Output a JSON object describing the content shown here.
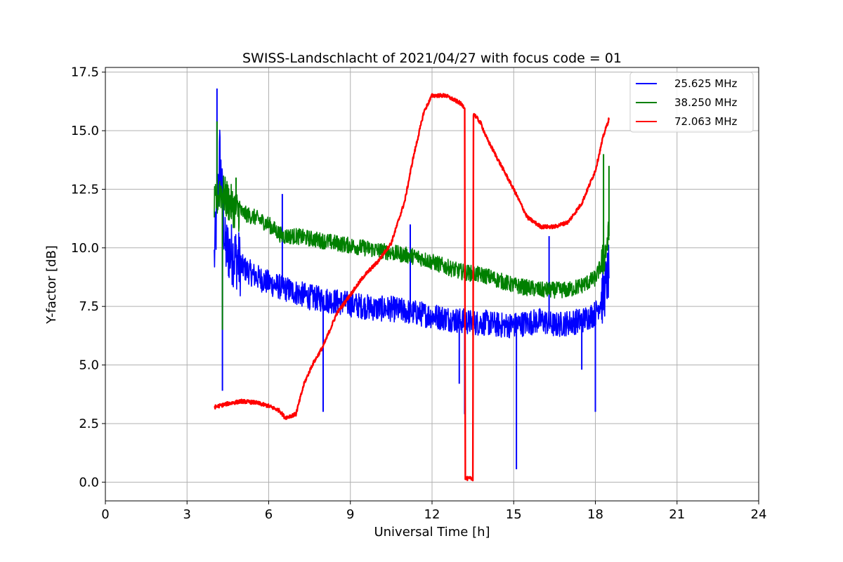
{
  "chart_data": {
    "type": "line",
    "title": "SWISS-Landschlacht of 2021/04/27 with focus code = 01",
    "xlabel": "Universal Time [h]",
    "ylabel": "Y-factor [dB]",
    "xlim": [
      0,
      24
    ],
    "ylim": [
      -0.8,
      17.7
    ],
    "xticks": [
      0,
      3,
      6,
      9,
      12,
      15,
      18,
      21,
      24
    ],
    "xtick_labels": [
      "0",
      "3",
      "6",
      "9",
      "12",
      "15",
      "18",
      "21",
      "24"
    ],
    "yticks": [
      0.0,
      2.5,
      5.0,
      7.5,
      10.0,
      12.5,
      15.0,
      17.5
    ],
    "ytick_labels": [
      "0.0",
      "2.5",
      "5.0",
      "7.5",
      "10.0",
      "12.5",
      "15.0",
      "17.5"
    ],
    "grid": true,
    "legend_position": "top-right",
    "series": [
      {
        "name": "25.625 MHz",
        "color": "#0000ff",
        "x": [
          4.0,
          4.1,
          4.2,
          4.3,
          4.4,
          4.6,
          4.8,
          5.0,
          5.5,
          6.0,
          6.5,
          7.0,
          7.5,
          8.0,
          8.5,
          9.0,
          9.5,
          10.0,
          10.5,
          11.0,
          11.5,
          12.0,
          12.5,
          13.0,
          13.5,
          14.0,
          14.5,
          15.0,
          15.5,
          16.0,
          16.5,
          17.0,
          17.5,
          18.0,
          18.3,
          18.5
        ],
        "y": [
          9.5,
          11.5,
          14.0,
          12.0,
          10.0,
          9.8,
          9.6,
          9.2,
          8.8,
          8.5,
          8.3,
          8.1,
          7.9,
          7.8,
          7.7,
          7.6,
          7.5,
          7.4,
          7.4,
          7.3,
          7.2,
          7.1,
          7.0,
          6.9,
          6.8,
          6.8,
          6.7,
          6.7,
          6.8,
          6.9,
          6.7,
          6.8,
          6.9,
          7.2,
          8.0,
          9.0
        ],
        "spikes": [
          [
            4.1,
            16.8
          ],
          [
            4.3,
            3.9
          ],
          [
            6.5,
            12.3
          ],
          [
            8.0,
            3.0
          ],
          [
            11.2,
            11.0
          ],
          [
            13.0,
            4.2
          ],
          [
            13.2,
            2.9
          ],
          [
            15.1,
            0.55
          ],
          [
            16.3,
            10.5
          ],
          [
            17.5,
            4.8
          ],
          [
            18.0,
            3.0
          ]
        ]
      },
      {
        "name": "38.250 MHz",
        "color": "#008000",
        "x": [
          4.0,
          4.2,
          4.5,
          4.8,
          5.0,
          5.5,
          6.0,
          6.5,
          7.0,
          7.5,
          8.0,
          8.5,
          9.0,
          9.5,
          10.0,
          10.5,
          11.0,
          11.5,
          12.0,
          12.5,
          13.0,
          13.5,
          14.0,
          14.5,
          15.0,
          15.5,
          16.0,
          16.5,
          17.0,
          17.5,
          18.0,
          18.3,
          18.5
        ],
        "y": [
          11.7,
          12.5,
          12.0,
          11.6,
          11.5,
          11.3,
          11.0,
          10.5,
          10.5,
          10.4,
          10.3,
          10.2,
          10.1,
          10.0,
          9.9,
          9.8,
          9.7,
          9.6,
          9.4,
          9.2,
          9.0,
          8.9,
          8.8,
          8.6,
          8.4,
          8.3,
          8.2,
          8.2,
          8.2,
          8.4,
          8.7,
          9.5,
          10.5
        ],
        "spikes": [
          [
            4.1,
            15.4
          ],
          [
            4.3,
            6.5
          ],
          [
            4.8,
            13.0
          ],
          [
            18.3,
            14.0
          ],
          [
            18.5,
            13.5
          ]
        ]
      },
      {
        "name": "72.063 MHz",
        "color": "#ff0000",
        "x": [
          4.0,
          4.5,
          5.0,
          5.5,
          6.0,
          6.4,
          6.6,
          7.0,
          7.3,
          7.6,
          8.0,
          8.5,
          9.0,
          9.5,
          10.0,
          10.5,
          11.0,
          11.3,
          11.7,
          12.0,
          12.5,
          13.0,
          13.2,
          13.22,
          13.25,
          13.5,
          13.52,
          13.55,
          13.8,
          14.0,
          14.5,
          15.0,
          15.5,
          16.0,
          16.5,
          17.0,
          17.5,
          18.0,
          18.3,
          18.5
        ],
        "y": [
          3.2,
          3.35,
          3.45,
          3.4,
          3.25,
          3.05,
          2.75,
          2.9,
          4.2,
          5.0,
          5.8,
          7.2,
          8.0,
          8.8,
          9.4,
          10.2,
          12.0,
          13.8,
          15.8,
          16.5,
          16.5,
          16.2,
          16.0,
          0.2,
          0.15,
          0.15,
          15.7,
          15.7,
          15.3,
          14.7,
          13.6,
          12.5,
          11.3,
          10.9,
          10.9,
          11.1,
          11.9,
          13.3,
          14.8,
          15.5
        ]
      }
    ]
  }
}
